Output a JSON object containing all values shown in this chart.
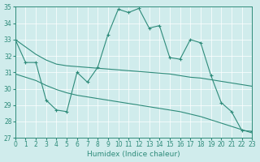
{
  "x": [
    0,
    1,
    2,
    3,
    4,
    5,
    6,
    7,
    8,
    9,
    10,
    11,
    12,
    13,
    14,
    15,
    16,
    17,
    18,
    19,
    20,
    21,
    22,
    23
  ],
  "y_main": [
    33.0,
    31.6,
    31.6,
    29.3,
    28.7,
    28.6,
    31.0,
    30.4,
    31.3,
    33.3,
    34.85,
    34.65,
    34.9,
    33.7,
    33.85,
    31.9,
    31.8,
    33.0,
    32.8,
    30.8,
    29.15,
    28.6,
    27.45,
    27.4
  ],
  "y_upper_trend": [
    33.0,
    32.55,
    32.1,
    31.75,
    31.5,
    31.4,
    31.35,
    31.3,
    31.25,
    31.2,
    31.15,
    31.1,
    31.05,
    31.0,
    30.95,
    30.9,
    30.8,
    30.7,
    30.65,
    30.55,
    30.45,
    30.35,
    30.25,
    30.15
  ],
  "y_lower_trend": [
    30.9,
    30.7,
    30.5,
    30.2,
    29.95,
    29.75,
    29.6,
    29.5,
    29.4,
    29.3,
    29.2,
    29.1,
    29.0,
    28.9,
    28.8,
    28.7,
    28.6,
    28.45,
    28.3,
    28.1,
    27.9,
    27.7,
    27.5,
    27.3
  ],
  "color": "#2E8B7A",
  "bg_color": "#d0ecec",
  "grid_color": "#ffffff",
  "xlabel": "Humidex (Indice chaleur)",
  "ylim": [
    27,
    35
  ],
  "xlim": [
    0,
    23
  ],
  "yticks": [
    27,
    28,
    29,
    30,
    31,
    32,
    33,
    34,
    35
  ],
  "xticks": [
    0,
    1,
    2,
    3,
    4,
    5,
    6,
    7,
    8,
    9,
    10,
    11,
    12,
    13,
    14,
    15,
    16,
    17,
    18,
    19,
    20,
    21,
    22,
    23
  ],
  "tick_fontsize": 5.5,
  "label_fontsize": 6.5
}
